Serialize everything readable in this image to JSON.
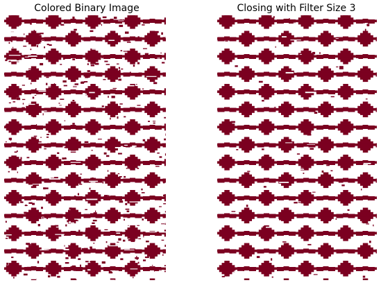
{
  "figure": {
    "colors": {
      "pattern": "#7b0020",
      "background": "#ffffff"
    },
    "panels": [
      {
        "title": "Colored Binary Image"
      },
      {
        "title": "Closing with Filter Size 3"
      }
    ]
  }
}
